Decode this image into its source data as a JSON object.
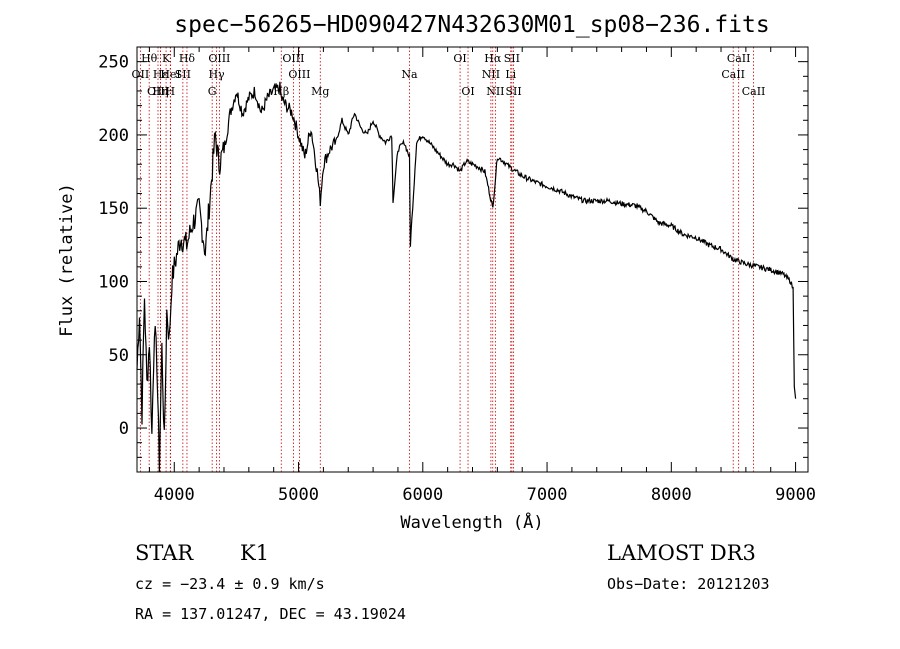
{
  "chart_data": {
    "type": "line",
    "title": "spec−56265−HD090427N432630M01_sp08−236.fits",
    "xlabel": "Wavelength (Å)",
    "ylabel": "Flux (relative)",
    "xlim": [
      3700,
      9100
    ],
    "ylim": [
      -30,
      260
    ],
    "x_ticks": [
      4000,
      5000,
      6000,
      7000,
      8000,
      9000
    ],
    "y_ticks": [
      0,
      50,
      100,
      150,
      200,
      250
    ],
    "grid": false,
    "series": [
      {
        "x": [
          3700,
          3720,
          3740,
          3760,
          3780,
          3800,
          3820,
          3840,
          3860,
          3880,
          3900,
          3920,
          3940,
          3960,
          3980,
          4000,
          4050,
          4100,
          4150,
          4200,
          4250,
          4300,
          4330,
          4360,
          4400,
          4450,
          4500,
          4550,
          4600,
          4650,
          4700,
          4750,
          4800,
          4850,
          4861,
          4900,
          4950,
          5000,
          5050,
          5100,
          5150,
          5175,
          5200,
          5250,
          5300,
          5350,
          5400,
          5450,
          5500,
          5550,
          5600,
          5650,
          5700,
          5750,
          5760,
          5800,
          5850,
          5893,
          5900,
          5950,
          6000,
          6050,
          6100,
          6150,
          6200,
          6250,
          6300,
          6350,
          6400,
          6450,
          6500,
          6563,
          6600,
          6650,
          6700,
          6800,
          6900,
          7000,
          7100,
          7200,
          7300,
          7400,
          7500,
          7600,
          7700,
          7800,
          7900,
          8000,
          8100,
          8200,
          8300,
          8400,
          8500,
          8600,
          8700,
          8800,
          8900,
          8960,
          8980,
          8990,
          9000
        ],
        "y": [
          40,
          80,
          10,
          90,
          30,
          60,
          -5,
          70,
          45,
          -25,
          55,
          -10,
          80,
          60,
          100,
          110,
          130,
          125,
          140,
          150,
          120,
          170,
          200,
          180,
          190,
          215,
          230,
          215,
          225,
          230,
          215,
          225,
          230,
          232,
          225,
          220,
          215,
          200,
          185,
          205,
          175,
          155,
          180,
          190,
          195,
          210,
          200,
          215,
          205,
          200,
          210,
          200,
          195,
          200,
          155,
          190,
          195,
          185,
          125,
          195,
          200,
          195,
          190,
          185,
          180,
          180,
          175,
          182,
          180,
          178,
          175,
          150,
          185,
          182,
          178,
          172,
          168,
          165,
          162,
          158,
          155,
          155,
          155,
          153,
          152,
          148,
          140,
          138,
          132,
          130,
          125,
          122,
          115,
          112,
          110,
          108,
          105,
          100,
          95,
          30,
          20
        ]
      }
    ],
    "line_markers": [
      {
        "label": "Hθ",
        "wl": 3798,
        "row": 1
      },
      {
        "label": "OII",
        "wl": 3727,
        "row": 2
      },
      {
        "label": "OIII",
        "wl": 3869,
        "row": 3
      },
      {
        "label": "Hε",
        "wl": 3889,
        "row": 2
      },
      {
        "label": "K",
        "wl": 3934,
        "row": 1
      },
      {
        "label": "HeI",
        "wl": 3970,
        "row": 2
      },
      {
        "label": "Hη",
        "wl": 3889,
        "row": 3
      },
      {
        "label": "H",
        "wl": 3968,
        "row": 3
      },
      {
        "label": "Hδ",
        "wl": 4102,
        "row": 1
      },
      {
        "label": "SII",
        "wl": 4069,
        "row": 2
      },
      {
        "label": "OIII",
        "wl": 4363,
        "row": 1
      },
      {
        "label": "Hγ",
        "wl": 4340,
        "row": 2
      },
      {
        "label": "G",
        "wl": 4305,
        "row": 3
      },
      {
        "label": "OIII",
        "wl": 4959,
        "row": 1
      },
      {
        "label": "OIII",
        "wl": 5007,
        "row": 2
      },
      {
        "label": "Hβ",
        "wl": 4861,
        "row": 3
      },
      {
        "label": "Mg",
        "wl": 5175,
        "row": 3
      },
      {
        "label": "Na",
        "wl": 5893,
        "row": 2
      },
      {
        "label": "OI",
        "wl": 6300,
        "row": 1
      },
      {
        "label": "OI",
        "wl": 6364,
        "row": 3
      },
      {
        "label": "Hα",
        "wl": 6563,
        "row": 1
      },
      {
        "label": "NII",
        "wl": 6548,
        "row": 2
      },
      {
        "label": "NII",
        "wl": 6584,
        "row": 3
      },
      {
        "label": "SII",
        "wl": 6717,
        "row": 1
      },
      {
        "label": "Li",
        "wl": 6708,
        "row": 2
      },
      {
        "label": "SII",
        "wl": 6731,
        "row": 3
      },
      {
        "label": "CaII",
        "wl": 8542,
        "row": 1
      },
      {
        "label": "CaII",
        "wl": 8498,
        "row": 2
      },
      {
        "label": "CaII",
        "wl": 8662,
        "row": 3
      }
    ]
  },
  "info": {
    "object_type": "STAR",
    "subclass": "K1",
    "survey": "LAMOST DR3",
    "cz": "cz = −23.4 ± 0.9 km/s",
    "obs_date": "Obs−Date: 20121203",
    "coords": "RA = 137.01247, DEC =  43.19024"
  }
}
